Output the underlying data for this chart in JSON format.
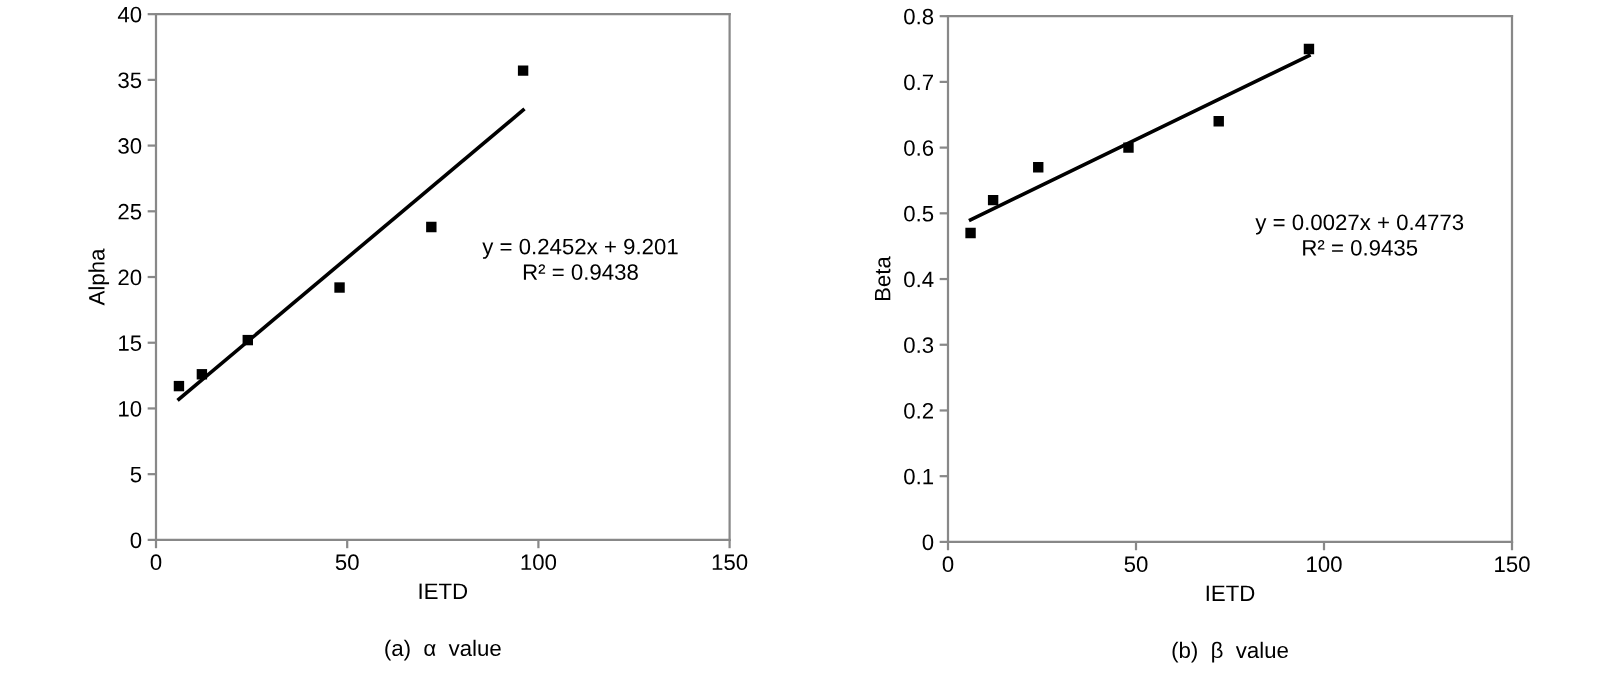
{
  "chart_data": [
    {
      "type": "scatter",
      "xlabel": "IETD",
      "ylabel": "Alpha",
      "xlim": [
        0,
        150
      ],
      "xticks": [
        0,
        50,
        100,
        150
      ],
      "ylim": [
        0,
        40
      ],
      "yticks": [
        0,
        5,
        10,
        15,
        20,
        25,
        30,
        35,
        40
      ],
      "grid": false,
      "legend": false,
      "marker": "square",
      "series": [
        {
          "color": "#000000",
          "x": [
            6,
            12,
            24,
            48,
            72,
            96
          ],
          "values": [
            11.7,
            12.6,
            15.2,
            19.2,
            23.8,
            35.7
          ]
        },
        {
          "type": "line",
          "color": "#000000",
          "x": [
            6,
            96
          ],
          "values": [
            10.7,
            32.7
          ],
          "marker": "none",
          "line_style": "solid"
        }
      ],
      "annotations": [
        "y = 0.2452x + 9.201\nR² = 0.9438",
        "(a)  α  value"
      ]
    },
    {
      "type": "scatter",
      "xlabel": "IETD",
      "ylabel": "Beta",
      "xlim": [
        0,
        150
      ],
      "xticks": [
        0,
        50,
        100,
        150
      ],
      "ylim": [
        0,
        0.8
      ],
      "yticks": [
        {
          "value": 0,
          "label": "0"
        },
        0.1,
        0.2,
        0.3,
        0.4,
        0.5,
        0.6,
        0.7,
        0.8
      ],
      "grid": false,
      "legend": false,
      "marker": "square",
      "series": [
        {
          "color": "#000000",
          "x": [
            6,
            12,
            24,
            48,
            72,
            96
          ],
          "values": [
            0.47,
            0.52,
            0.57,
            0.6,
            0.64,
            0.75
          ]
        },
        {
          "type": "line",
          "color": "#000000",
          "x": [
            6,
            96
          ],
          "values": [
            0.49,
            0.74
          ],
          "marker": "none",
          "line_style": "solid"
        }
      ],
      "annotations": [
        "y = 0.0027x + 0.4773\nR² = 0.9435",
        "(b)  β  value"
      ]
    }
  ]
}
